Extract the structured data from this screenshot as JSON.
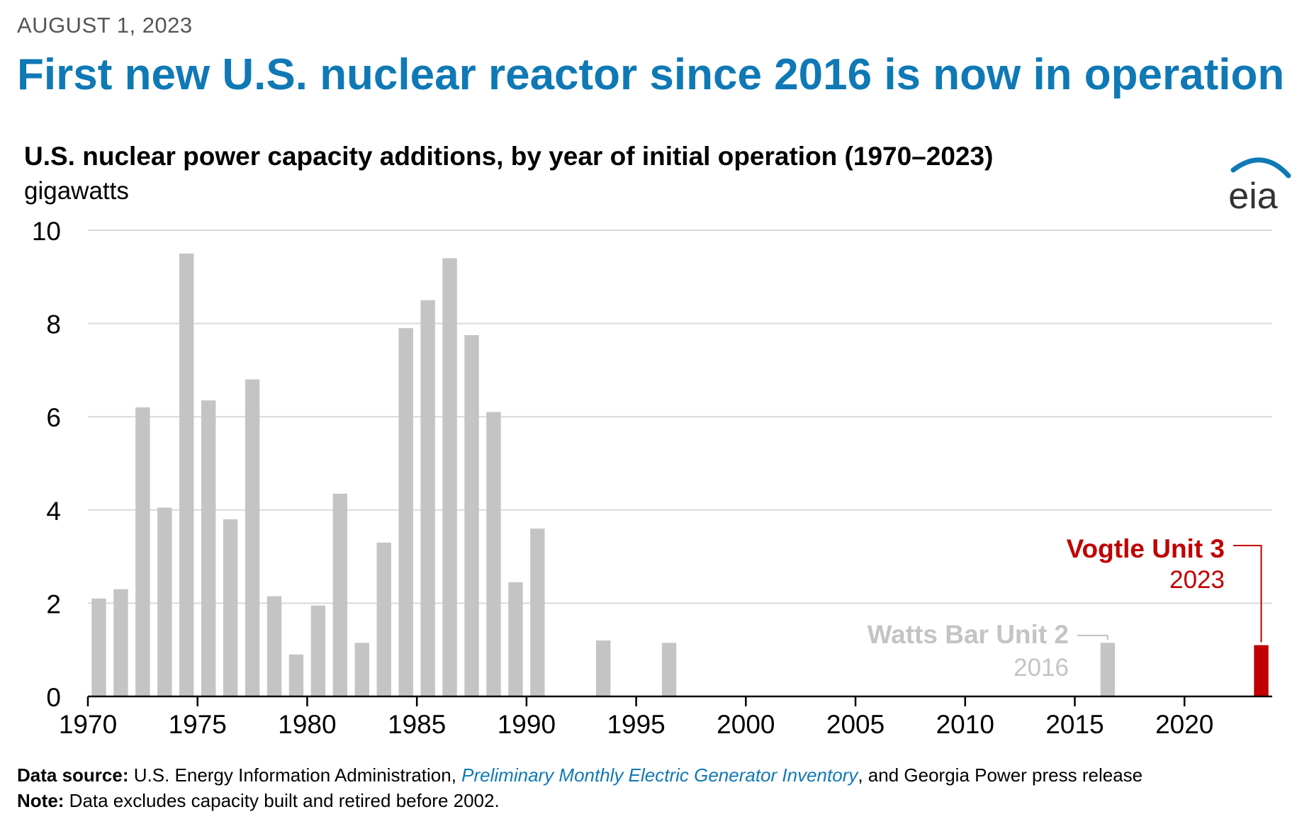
{
  "header": {
    "date": "AUGUST 1, 2023",
    "headline": "First new U.S. nuclear reactor since 2016 is now in operation"
  },
  "chart_title": "U.S. nuclear power capacity additions, by year of initial operation (1970–2023)",
  "units": "gigawatts",
  "logo": {
    "text": "eia",
    "accent_color": "#0f79b5"
  },
  "chart_data": {
    "type": "bar",
    "x": [
      1970,
      1971,
      1972,
      1973,
      1974,
      1975,
      1976,
      1977,
      1978,
      1979,
      1980,
      1981,
      1982,
      1983,
      1984,
      1985,
      1986,
      1987,
      1988,
      1989,
      1990,
      1993,
      1996,
      2016,
      2023
    ],
    "values": [
      2.1,
      2.3,
      6.2,
      4.05,
      9.5,
      6.35,
      3.8,
      6.8,
      2.15,
      0.9,
      1.95,
      4.35,
      1.15,
      3.3,
      7.9,
      8.5,
      9.4,
      7.75,
      6.1,
      2.45,
      3.6,
      1.2,
      1.15,
      1.15,
      1.1
    ],
    "xlim": [
      1970,
      2023
    ],
    "ylim": [
      0,
      10
    ],
    "y_ticks": [
      0,
      2,
      4,
      6,
      8,
      10
    ],
    "x_ticks": [
      1970,
      1975,
      1980,
      1985,
      1990,
      1995,
      2000,
      2005,
      2010,
      2015,
      2020
    ],
    "grid": true,
    "colors": {
      "default": "#c4c4c4",
      "highlight": "#c00000",
      "gridline": "#d9d9d9",
      "axis": "#000000"
    },
    "annotations": [
      {
        "x": 2016,
        "label": "Watts Bar Unit 2",
        "sublabel": "2016",
        "color": "#c4c4c4"
      },
      {
        "x": 2023,
        "label": "Vogtle Unit 3",
        "sublabel": "2023",
        "color": "#c00000"
      }
    ]
  },
  "footer": {
    "source_label": "Data source:",
    "source_text_1": " U.S. Energy Information Administration, ",
    "source_link": "Preliminary Monthly Electric Generator Inventory",
    "source_text_2": ", and Georgia Power press release",
    "note_label": "Note:",
    "note_text": " Data excludes capacity built and retired before 2002."
  }
}
